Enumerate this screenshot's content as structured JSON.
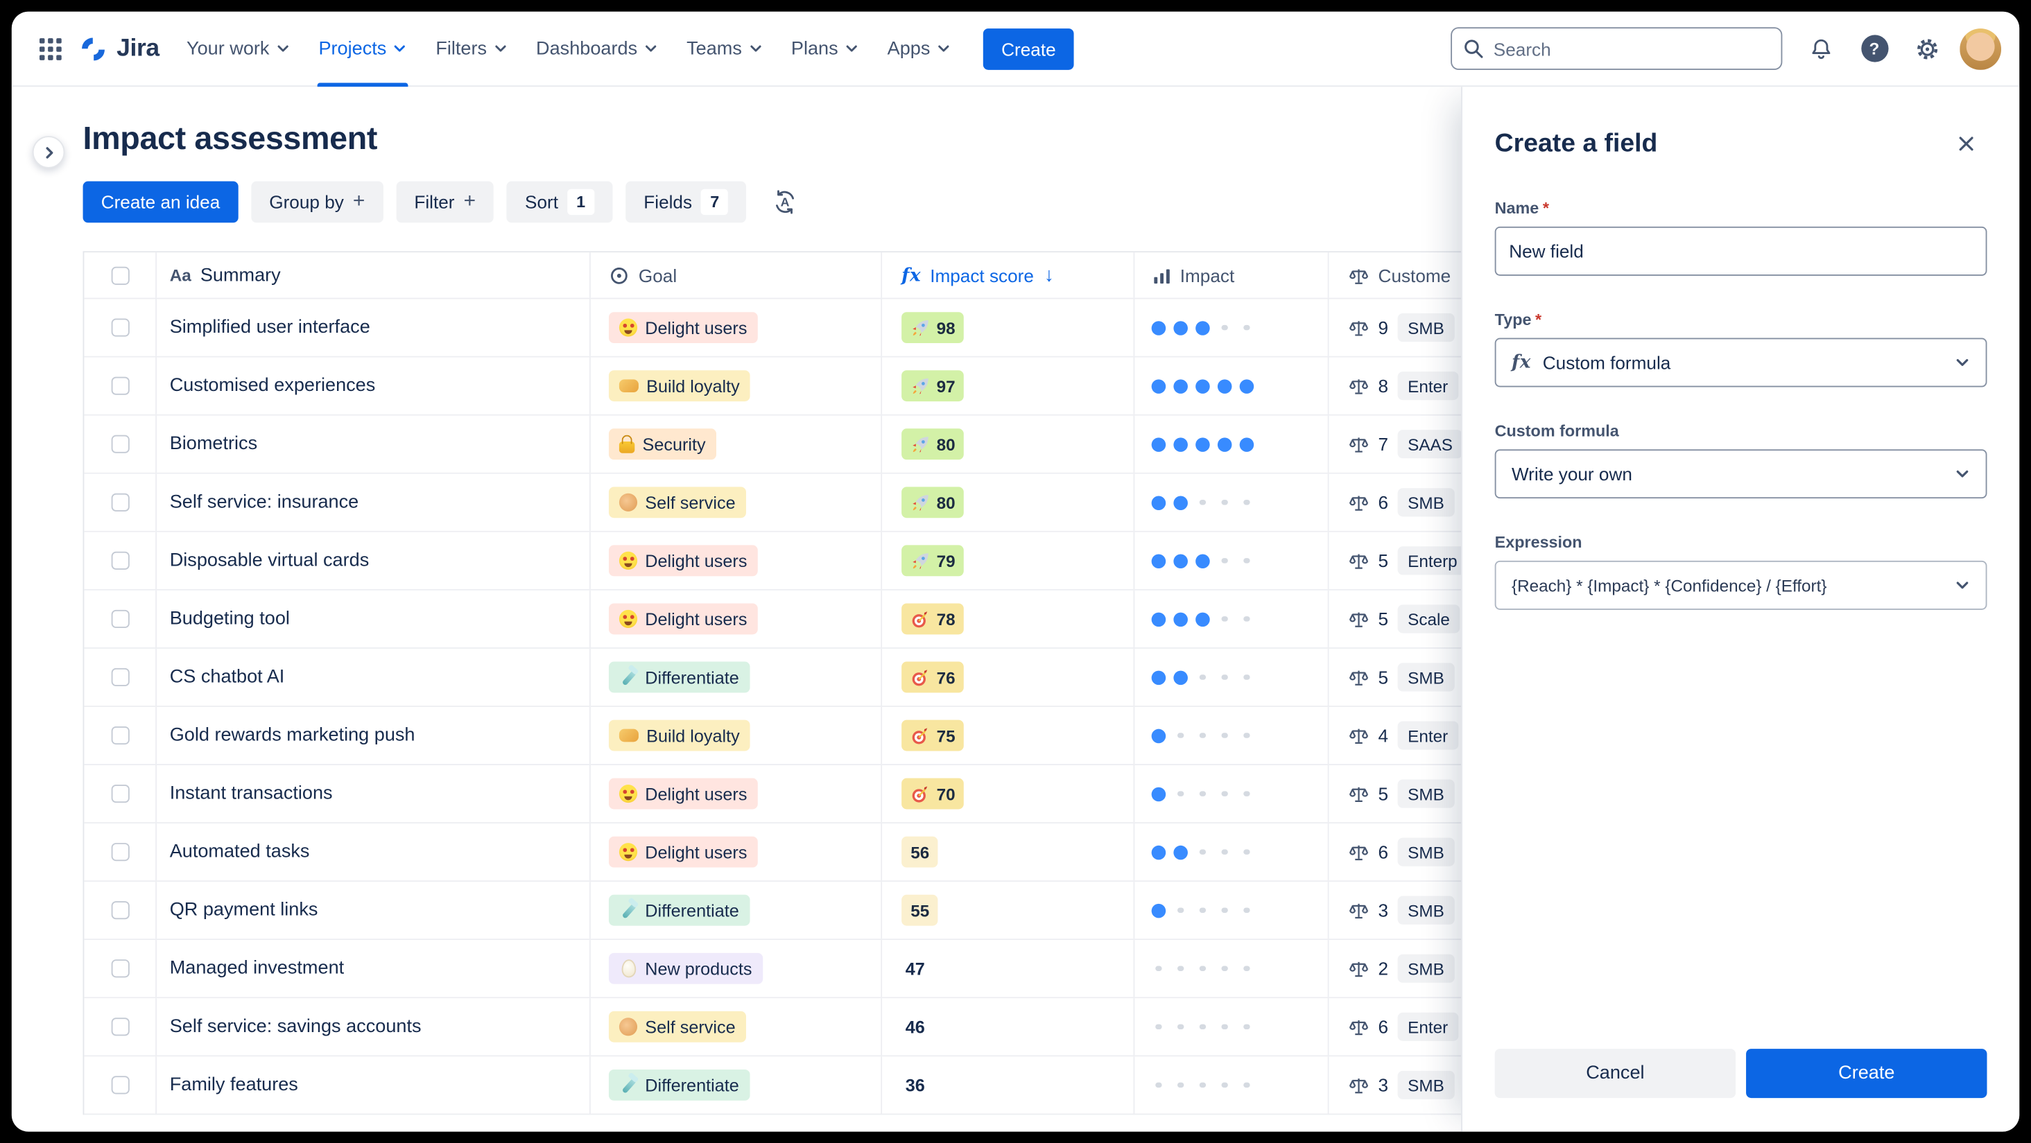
{
  "colors": {
    "accent": "#0C66E4",
    "score_green": "#D3F1A7",
    "score_yellow": "#F8E6A0",
    "score_pale": "#FBF0CF",
    "impact_dot": "#388BFF"
  },
  "topnav": {
    "logo_text": "Jira",
    "items": [
      {
        "label": "Your work",
        "active": false
      },
      {
        "label": "Projects",
        "active": true
      },
      {
        "label": "Filters",
        "active": false
      },
      {
        "label": "Dashboards",
        "active": false
      },
      {
        "label": "Teams",
        "active": false
      },
      {
        "label": "Plans",
        "active": false
      },
      {
        "label": "Apps",
        "active": false
      }
    ],
    "create_button": "Create",
    "search": {
      "placeholder": "Search"
    }
  },
  "page": {
    "title": "Impact assessment",
    "toolbar": {
      "create_idea": "Create an idea",
      "group_by": "Group by",
      "filter": "Filter",
      "sort": "Sort",
      "sort_count": "1",
      "fields": "Fields",
      "fields_count": "7"
    }
  },
  "table": {
    "header": {
      "summary_icon_text": "Aa",
      "summary": "Summary",
      "goal": "Goal",
      "impact_score_fx": "fx",
      "impact_score": "Impact score",
      "impact": "Impact",
      "customer": "Custome"
    },
    "rows": [
      {
        "summary": "Simplified user interface",
        "goal": "Delight users",
        "goal_icon": "heart-eyes",
        "goal_bg": "#FFE5E0",
        "score": "98",
        "score_style": "green",
        "score_icon": "rocket",
        "impact": 3,
        "customer_count": "9",
        "customer_tag": "SMB"
      },
      {
        "summary": "Customised experiences",
        "goal": "Build loyalty",
        "goal_icon": "handshake",
        "goal_bg": "#FCEFC0",
        "score": "97",
        "score_style": "green",
        "score_icon": "rocket",
        "impact": 5,
        "customer_count": "8",
        "customer_tag": "Enter"
      },
      {
        "summary": "Biometrics",
        "goal": "Security",
        "goal_icon": "lock",
        "goal_bg": "#FFE8CF",
        "score": "80",
        "score_style": "green",
        "score_icon": "rocket",
        "impact": 5,
        "customer_count": "7",
        "customer_tag": "SAAS"
      },
      {
        "summary": "Self service: insurance",
        "goal": "Self service",
        "goal_icon": "muscle",
        "goal_bg": "#FCEFC0",
        "score": "80",
        "score_style": "green",
        "score_icon": "rocket",
        "impact": 2,
        "customer_count": "6",
        "customer_tag": "SMB"
      },
      {
        "summary": "Disposable virtual cards",
        "goal": "Delight users",
        "goal_icon": "heart-eyes",
        "goal_bg": "#FFE5E0",
        "score": "79",
        "score_style": "green",
        "score_icon": "rocket",
        "impact": 3,
        "customer_count": "5",
        "customer_tag": "Enterp"
      },
      {
        "summary": "Budgeting tool",
        "goal": "Delight users",
        "goal_icon": "heart-eyes",
        "goal_bg": "#FFE5E0",
        "score": "78",
        "score_style": "yellow",
        "score_icon": "dart",
        "impact": 3,
        "customer_count": "5",
        "customer_tag": "Scale"
      },
      {
        "summary": "CS chatbot AI",
        "goal": "Differentiate",
        "goal_icon": "razor",
        "goal_bg": "#D9F2E4",
        "score": "76",
        "score_style": "yellow",
        "score_icon": "dart",
        "impact": 2,
        "customer_count": "5",
        "customer_tag": "SMB"
      },
      {
        "summary": "Gold rewards marketing push",
        "goal": "Build loyalty",
        "goal_icon": "handshake",
        "goal_bg": "#FCEFC0",
        "score": "75",
        "score_style": "yellow",
        "score_icon": "dart",
        "impact": 1,
        "customer_count": "4",
        "customer_tag": "Enter"
      },
      {
        "summary": "Instant transactions",
        "goal": "Delight users",
        "goal_icon": "heart-eyes",
        "goal_bg": "#FFE5E0",
        "score": "70",
        "score_style": "yellow",
        "score_icon": "dart",
        "impact": 1,
        "customer_count": "5",
        "customer_tag": "SMB"
      },
      {
        "summary": "Automated tasks",
        "goal": "Delight users",
        "goal_icon": "heart-eyes",
        "goal_bg": "#FFE5E0",
        "score": "56",
        "score_style": "pale",
        "score_icon": null,
        "impact": 2,
        "customer_count": "6",
        "customer_tag": "SMB"
      },
      {
        "summary": "QR payment links",
        "goal": "Differentiate",
        "goal_icon": "razor",
        "goal_bg": "#D9F2E4",
        "score": "55",
        "score_style": "pale",
        "score_icon": null,
        "impact": 1,
        "customer_count": "3",
        "customer_tag": "SMB"
      },
      {
        "summary": "Managed investment",
        "goal": "New products",
        "goal_icon": "egg",
        "goal_bg": "#EFEAFB",
        "score": "47",
        "score_style": "none",
        "score_icon": null,
        "impact": 0,
        "customer_count": "2",
        "customer_tag": "SMB"
      },
      {
        "summary": "Self service: savings accounts",
        "goal": "Self service",
        "goal_icon": "muscle",
        "goal_bg": "#FCEFC0",
        "score": "46",
        "score_style": "none",
        "score_icon": null,
        "impact": 0,
        "customer_count": "6",
        "customer_tag": "Enter"
      },
      {
        "summary": "Family features",
        "goal": "Differentiate",
        "goal_icon": "razor",
        "goal_bg": "#D9F2E4",
        "score": "36",
        "score_style": "none",
        "score_icon": null,
        "impact": 0,
        "customer_count": "3",
        "customer_tag": "SMB"
      }
    ]
  },
  "panel": {
    "title": "Create a field",
    "name_label": "Name",
    "name_required": "*",
    "name_value": "New field",
    "type_label": "Type",
    "type_required": "*",
    "type_icon": "fx",
    "type_value": "Custom formula",
    "custom_formula_label": "Custom formula",
    "custom_formula_value": "Write your own",
    "expression_label": "Expression",
    "expression_value": "{Reach} * {Impact} * {Confidence} / {Effort}",
    "cancel_button": "Cancel",
    "create_button": "Create"
  }
}
